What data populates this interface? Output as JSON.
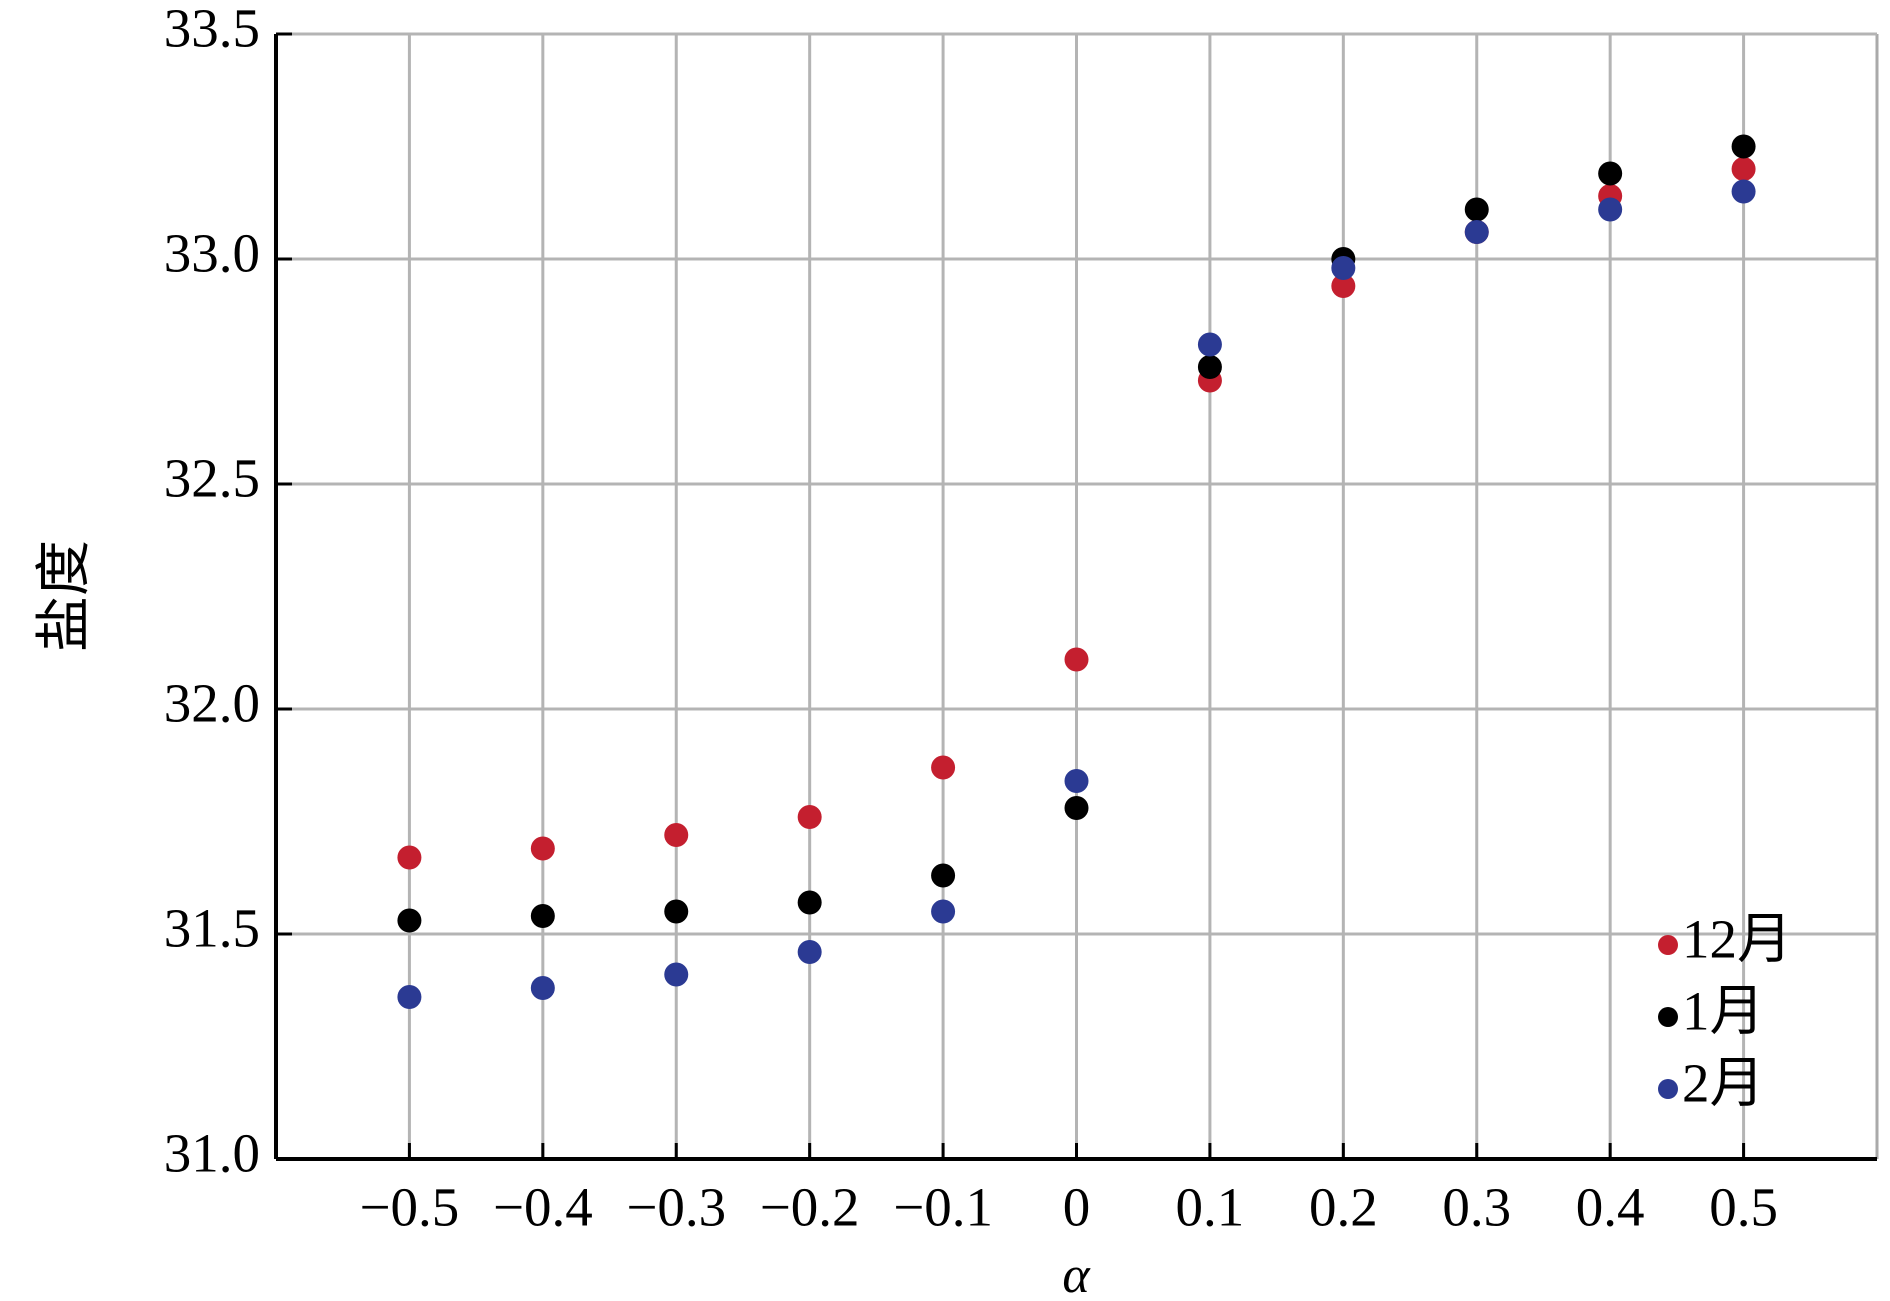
{
  "chart_data": {
    "type": "scatter",
    "x_label": "α",
    "y_label": "盐度",
    "x": [
      -0.5,
      -0.4,
      -0.3,
      -0.2,
      -0.1,
      0,
      0.1,
      0.2,
      0.3,
      0.4,
      0.5
    ],
    "series": [
      {
        "name": "12月",
        "color": "#c41f2f",
        "values": [
          31.67,
          31.69,
          31.72,
          31.76,
          31.87,
          32.11,
          32.73,
          32.94,
          33.06,
          33.14,
          33.2
        ]
      },
      {
        "name": "1月",
        "color": "#000000",
        "values": [
          31.53,
          31.54,
          31.55,
          31.57,
          31.63,
          31.78,
          32.76,
          33.0,
          33.11,
          33.19,
          33.25
        ]
      },
      {
        "name": "2月",
        "color": "#2b3a93",
        "values": [
          31.36,
          31.38,
          31.41,
          31.46,
          31.55,
          31.84,
          32.81,
          32.98,
          33.06,
          33.11,
          33.15
        ]
      }
    ],
    "xlim": [
      -0.6,
      0.6
    ],
    "xticks": [
      {
        "value": -0.5,
        "label": "−0.5"
      },
      {
        "value": -0.4,
        "label": "−0.4"
      },
      {
        "value": -0.3,
        "label": "−0.3"
      },
      {
        "value": -0.2,
        "label": "−0.2"
      },
      {
        "value": -0.1,
        "label": "−0.1"
      },
      0,
      0.1,
      0.2,
      0.3,
      0.4,
      0.5
    ],
    "ylim": [
      31,
      33.5
    ],
    "yticks": [
      {
        "value": 31,
        "label": "31.0"
      },
      31.5,
      {
        "value": 32,
        "label": "32.0"
      },
      32.5,
      {
        "value": 33,
        "label": "33.0"
      },
      33.5
    ],
    "grid": true,
    "legend": "lower right"
  }
}
